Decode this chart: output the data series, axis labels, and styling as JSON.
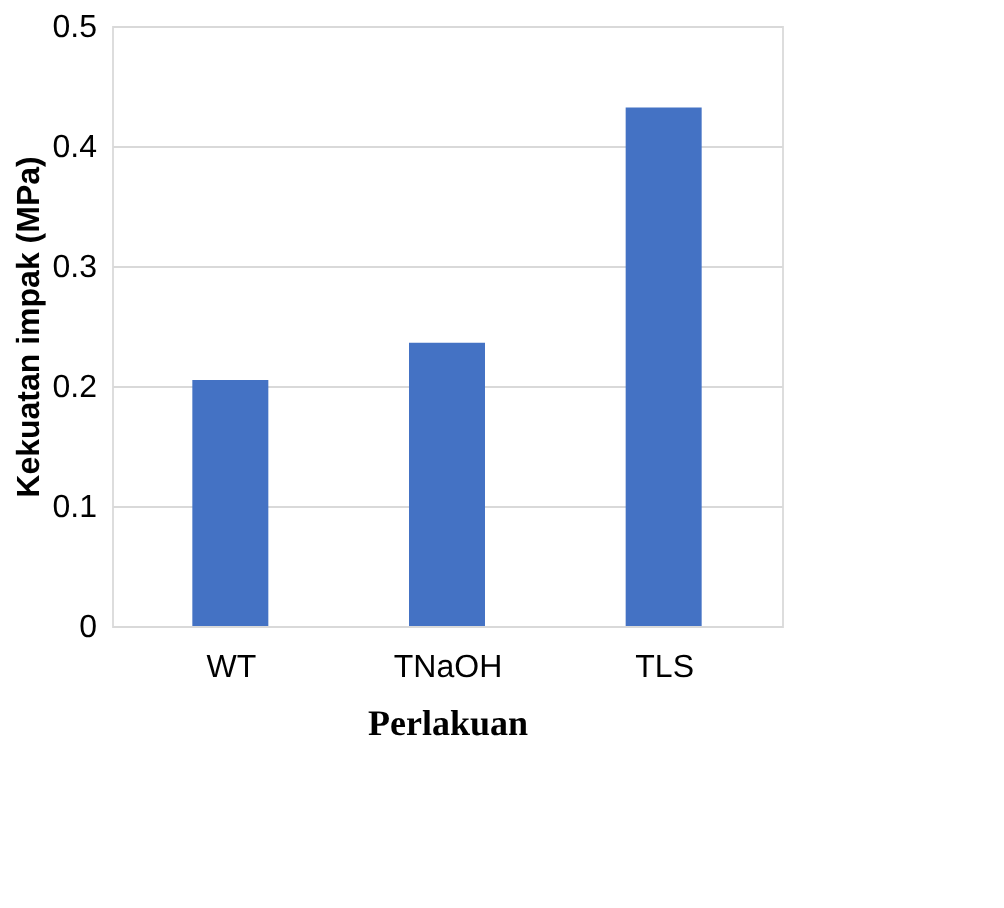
{
  "chart_data": {
    "type": "bar",
    "xlabel": "Perlakuan",
    "ylabel": "Kekuatan impak (MPa)",
    "categories": [
      "WT",
      "TNaOH",
      "TLS"
    ],
    "values": [
      0.205,
      0.236,
      0.432
    ],
    "color": "#4472c4",
    "ylim": [
      0,
      0.5
    ],
    "yticks": [
      0,
      0.1,
      0.2,
      0.3,
      0.4,
      0.5
    ],
    "grid": "y"
  }
}
